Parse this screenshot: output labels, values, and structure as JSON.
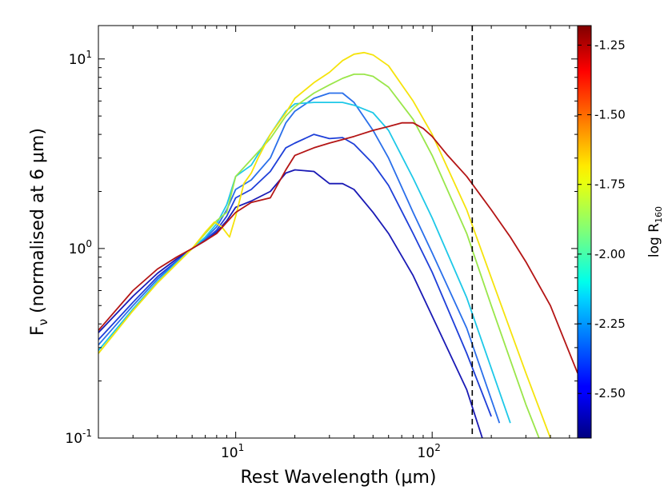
{
  "chart_data": {
    "type": "line",
    "xscale": "log",
    "yscale": "log",
    "xlim": [
      2,
      550
    ],
    "ylim": [
      0.1,
      15
    ],
    "xlabel": "Rest Wavelength (μm)",
    "ylabel": "F_ν (normalised at 6 μm)",
    "x_ticks": [
      {
        "value": 10,
        "base": "10",
        "exp": "1"
      },
      {
        "value": 100,
        "base": "10",
        "exp": "2"
      }
    ],
    "y_ticks": [
      {
        "value": 0.1,
        "base": "10",
        "exp": "-1"
      },
      {
        "value": 1,
        "base": "10",
        "exp": "0"
      },
      {
        "value": 10,
        "base": "10",
        "exp": "1"
      }
    ],
    "vline": {
      "x": 160,
      "style": "dashed",
      "color": "#000000"
    },
    "colorbar": {
      "label": "log R",
      "label_sub": "160",
      "range": [
        -2.66,
        -1.18
      ],
      "ticks": [
        "-1.25",
        "-1.50",
        "-1.75",
        "-2.00",
        "-2.25",
        "-2.50"
      ],
      "tick_values": [
        -1.25,
        -1.5,
        -1.75,
        -2.0,
        -2.25,
        -2.5
      ]
    },
    "series": [
      {
        "name": "log R160 = -2.55",
        "color": "#1a1ab5",
        "x": [
          2,
          3,
          4,
          5,
          6,
          7,
          8,
          9,
          10,
          12,
          15,
          18,
          20,
          25,
          30,
          35,
          40,
          50,
          60,
          80,
          100,
          150,
          180
        ],
        "y": [
          0.36,
          0.56,
          0.74,
          0.88,
          1.0,
          1.1,
          1.22,
          1.4,
          1.65,
          1.78,
          2.0,
          2.5,
          2.6,
          2.55,
          2.2,
          2.2,
          2.05,
          1.55,
          1.2,
          0.72,
          0.44,
          0.18,
          0.1
        ]
      },
      {
        "name": "log R160 = -2.40",
        "color": "#1e3fd8",
        "x": [
          2,
          3,
          4,
          5,
          6,
          7,
          8,
          9,
          10,
          12,
          15,
          18,
          20,
          25,
          30,
          35,
          40,
          50,
          60,
          80,
          100,
          150,
          200
        ],
        "y": [
          0.33,
          0.52,
          0.71,
          0.86,
          1.0,
          1.11,
          1.25,
          1.48,
          1.85,
          2.05,
          2.55,
          3.4,
          3.6,
          4.0,
          3.8,
          3.85,
          3.55,
          2.8,
          2.15,
          1.2,
          0.75,
          0.28,
          0.13
        ]
      },
      {
        "name": "log R160 = -2.30",
        "color": "#2a6fea",
        "x": [
          2,
          3,
          4,
          5,
          6,
          7,
          8,
          9,
          10,
          12,
          15,
          18,
          20,
          25,
          30,
          35,
          40,
          50,
          60,
          80,
          100,
          150,
          220
        ],
        "y": [
          0.31,
          0.5,
          0.69,
          0.85,
          1.0,
          1.13,
          1.3,
          1.6,
          2.05,
          2.3,
          3.0,
          4.6,
          5.3,
          6.2,
          6.6,
          6.6,
          5.9,
          4.2,
          3.0,
          1.55,
          0.95,
          0.38,
          0.12
        ]
      },
      {
        "name": "log R160 = -2.15",
        "color": "#1ec8e8",
        "x": [
          2,
          3,
          4,
          5,
          6,
          7,
          8,
          9,
          10,
          12,
          15,
          18,
          20,
          25,
          30,
          35,
          40,
          50,
          60,
          80,
          100,
          150,
          250
        ],
        "y": [
          0.29,
          0.48,
          0.67,
          0.84,
          1.0,
          1.15,
          1.35,
          1.7,
          2.4,
          2.75,
          4.0,
          5.3,
          5.8,
          5.9,
          5.9,
          5.9,
          5.7,
          5.2,
          4.2,
          2.35,
          1.45,
          0.55,
          0.12
        ]
      },
      {
        "name": "log R160 = -1.90",
        "color": "#9ae64a",
        "x": [
          2,
          3,
          4,
          5,
          6,
          7,
          8,
          9,
          10,
          12,
          15,
          18,
          20,
          25,
          30,
          35,
          40,
          45,
          50,
          60,
          80,
          100,
          150,
          200,
          300,
          350
        ],
        "y": [
          0.28,
          0.47,
          0.66,
          0.83,
          1.0,
          1.2,
          1.4,
          1.55,
          2.4,
          2.95,
          3.8,
          5.0,
          5.6,
          6.6,
          7.3,
          7.9,
          8.3,
          8.3,
          8.1,
          7.1,
          4.8,
          3.1,
          1.2,
          0.5,
          0.15,
          0.1
        ]
      },
      {
        "name": "log R160 = -1.72",
        "color": "#f5e30c",
        "x": [
          2,
          3,
          4,
          5,
          6,
          7,
          7.8,
          8.5,
          9.3,
          10,
          11,
          12,
          13,
          15,
          18,
          20,
          25,
          30,
          35,
          40,
          45,
          50,
          60,
          80,
          100,
          150,
          200,
          300,
          400
        ],
        "y": [
          0.28,
          0.47,
          0.66,
          0.83,
          1.0,
          1.22,
          1.38,
          1.3,
          1.15,
          1.48,
          2.2,
          2.5,
          3.0,
          4.0,
          5.2,
          6.2,
          7.5,
          8.5,
          9.8,
          10.6,
          10.8,
          10.5,
          9.2,
          6.0,
          4.0,
          1.6,
          0.7,
          0.22,
          0.1
        ]
      },
      {
        "name": "log R160 = -1.22",
        "color": "#b41515",
        "x": [
          2,
          3,
          4,
          5,
          6,
          7,
          8,
          10,
          12,
          15,
          18,
          20,
          25,
          30,
          40,
          50,
          60,
          70,
          80,
          90,
          100,
          120,
          150,
          200,
          250,
          300,
          400,
          550
        ],
        "y": [
          0.37,
          0.6,
          0.78,
          0.9,
          1.0,
          1.1,
          1.2,
          1.55,
          1.75,
          1.85,
          2.6,
          3.1,
          3.4,
          3.6,
          3.9,
          4.2,
          4.4,
          4.6,
          4.6,
          4.3,
          3.9,
          3.1,
          2.4,
          1.6,
          1.15,
          0.85,
          0.5,
          0.22
        ]
      }
    ]
  }
}
